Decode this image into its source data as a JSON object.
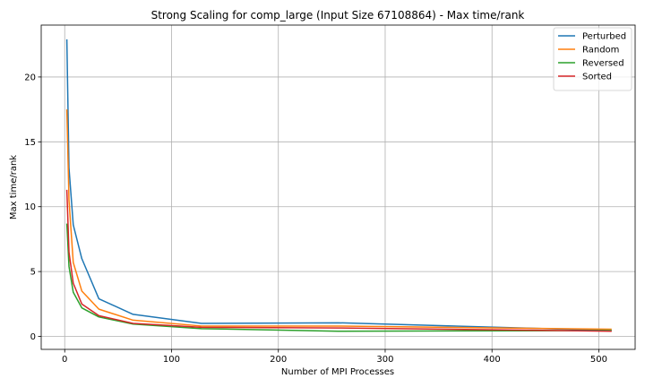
{
  "chart_data": {
    "type": "line",
    "title": "Strong Scaling for comp_large (Input Size 67108864) - Max time/rank",
    "xlabel": "Number of MPI Processes",
    "ylabel": "Max time/rank",
    "xlim": [
      -22,
      534
    ],
    "ylim": [
      -1.0,
      24.0
    ],
    "xticks": [
      0,
      100,
      200,
      300,
      400,
      500
    ],
    "yticks": [
      0,
      5,
      10,
      15,
      20
    ],
    "grid": true,
    "legend_position": "top-right",
    "x": [
      2,
      4,
      8,
      16,
      32,
      64,
      128,
      256,
      512
    ],
    "series": [
      {
        "name": "Perturbed",
        "color": "#1f77b4",
        "values": [
          22.9,
          13.0,
          8.6,
          6.0,
          2.9,
          1.7,
          1.0,
          1.05,
          0.45
        ]
      },
      {
        "name": "Random",
        "color": "#ff7f0e",
        "values": [
          17.5,
          10.5,
          5.7,
          3.5,
          2.1,
          1.25,
          0.8,
          0.8,
          0.55
        ]
      },
      {
        "name": "Reversed",
        "color": "#2ca02c",
        "values": [
          8.7,
          5.4,
          3.4,
          2.2,
          1.5,
          0.95,
          0.6,
          0.4,
          0.45
        ]
      },
      {
        "name": "Sorted",
        "color": "#d62728",
        "values": [
          11.3,
          6.5,
          4.1,
          2.5,
          1.6,
          1.0,
          0.7,
          0.65,
          0.4
        ]
      }
    ]
  }
}
